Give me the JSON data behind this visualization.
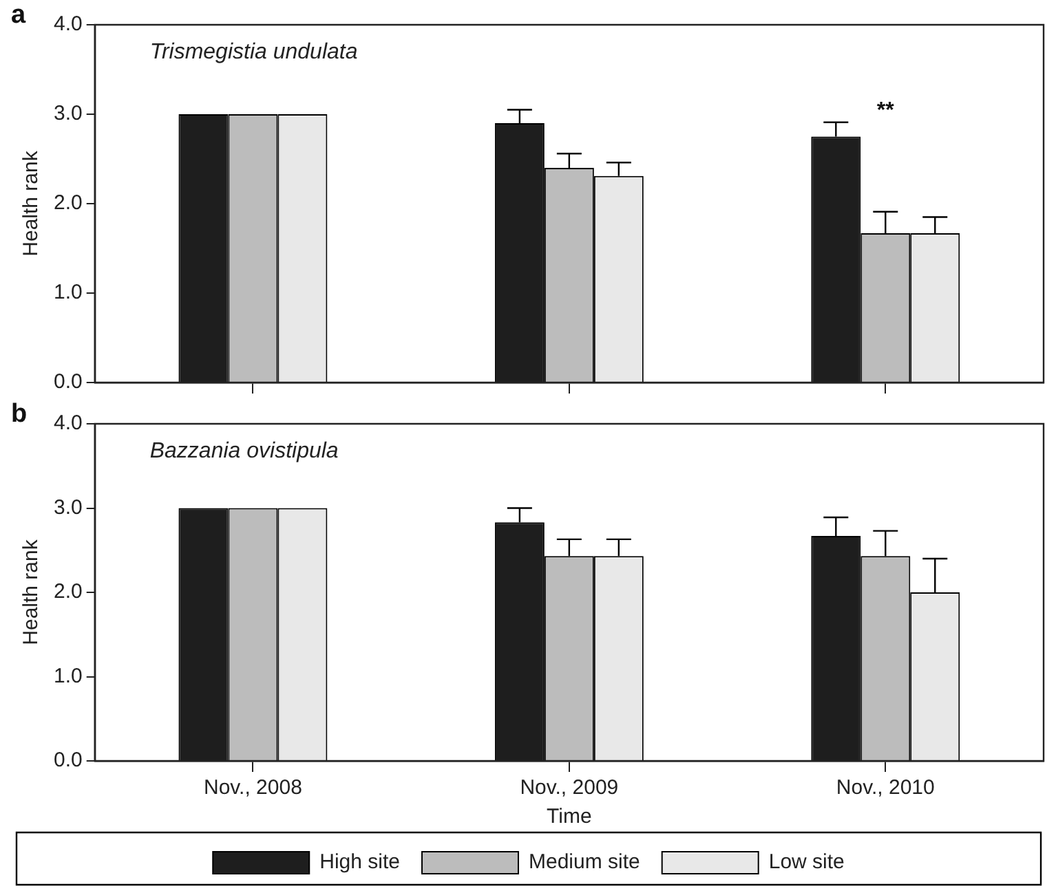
{
  "chart_data": [
    {
      "type": "bar",
      "title": "Trismegistia undulata",
      "ylabel": "Health rank",
      "categories": [
        null,
        null,
        null
      ],
      "series": [
        {
          "color": "#1e1e1e",
          "values": [
            3.0,
            2.9,
            2.75
          ],
          "errors": [
            null,
            0.15,
            0.16
          ]
        },
        {
          "color": "#bcbcbc",
          "values": [
            3.0,
            2.4,
            1.67
          ],
          "errors": [
            null,
            0.16,
            0.24
          ]
        },
        {
          "color": "#e8e8e8",
          "values": [
            3.0,
            2.31,
            1.67
          ],
          "errors": [
            null,
            0.15,
            0.18
          ]
        }
      ],
      "ylim": [
        0,
        4
      ],
      "yticks": [
        {
          "value": 0,
          "label": "0.0"
        },
        {
          "value": 1,
          "label": "1.0"
        },
        {
          "value": 2,
          "label": "2.0"
        },
        {
          "value": 3,
          "label": "3.0"
        },
        {
          "value": 4,
          "label": "4.0"
        }
      ],
      "grid": false,
      "legend": false,
      "tick_labels": "y",
      "annotations": [
        "a",
        "**"
      ]
    },
    {
      "type": "bar",
      "title": "Bazzania ovistipula",
      "xlabel": "Time",
      "ylabel": "Health rank",
      "categories": [
        "Nov., 2008",
        "Nov., 2009",
        "Nov., 2010"
      ],
      "series": [
        {
          "name": "High site",
          "color": "#1e1e1e",
          "values": [
            3.0,
            2.83,
            2.67
          ],
          "errors": [
            null,
            0.17,
            0.22
          ]
        },
        {
          "name": "Medium site",
          "color": "#bcbcbc",
          "values": [
            3.0,
            2.43,
            2.43
          ],
          "errors": [
            null,
            0.2,
            0.3
          ]
        },
        {
          "name": "Low site",
          "color": "#e8e8e8",
          "values": [
            3.0,
            2.43,
            2.0
          ],
          "errors": [
            null,
            0.2,
            0.4
          ]
        }
      ],
      "ylim": [
        0,
        4
      ],
      "yticks": [
        {
          "value": 0,
          "label": "0.0"
        },
        {
          "value": 1,
          "label": "1.0"
        },
        {
          "value": 2,
          "label": "2.0"
        },
        {
          "value": 3,
          "label": "3.0"
        },
        {
          "value": 4,
          "label": "4.0"
        }
      ],
      "grid": false,
      "legend": "bottom",
      "annotations": [
        "b"
      ]
    }
  ]
}
